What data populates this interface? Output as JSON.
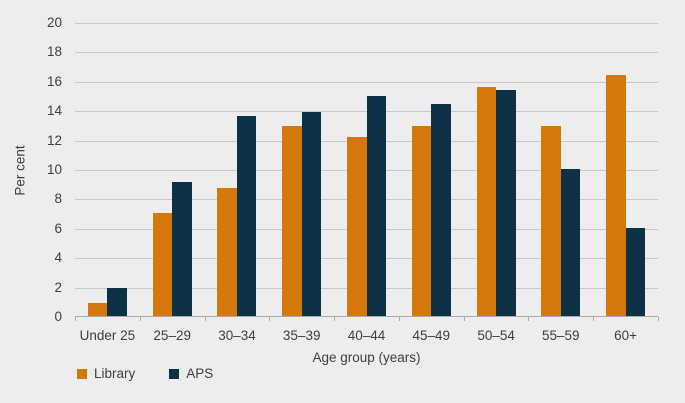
{
  "chart_data": {
    "type": "bar",
    "title": "",
    "categories": [
      "Under 25",
      "25–29",
      "30–34",
      "35–39",
      "40–44",
      "45–49",
      "50–54",
      "55–59",
      "60+"
    ],
    "series": [
      {
        "name": "Library",
        "color": "#D4780C",
        "values": [
          0.9,
          7.0,
          8.7,
          12.9,
          12.2,
          12.9,
          15.6,
          12.9,
          16.4
        ]
      },
      {
        "name": "APS",
        "color": "#0E3245",
        "values": [
          1.9,
          9.1,
          13.6,
          13.9,
          15.0,
          14.4,
          15.4,
          10.0,
          6.0
        ]
      }
    ],
    "xlabel": "Age group (years)",
    "ylabel": "Per cent",
    "ylim": [
      0,
      20
    ],
    "ytick_step": 2,
    "grid": true,
    "legend_position": "bottom-left",
    "background_color": "#EDEDEE",
    "gridline_color": "#C8C8CA",
    "axis_color": "#A9A9AB",
    "text_color": "#3E3E40"
  }
}
